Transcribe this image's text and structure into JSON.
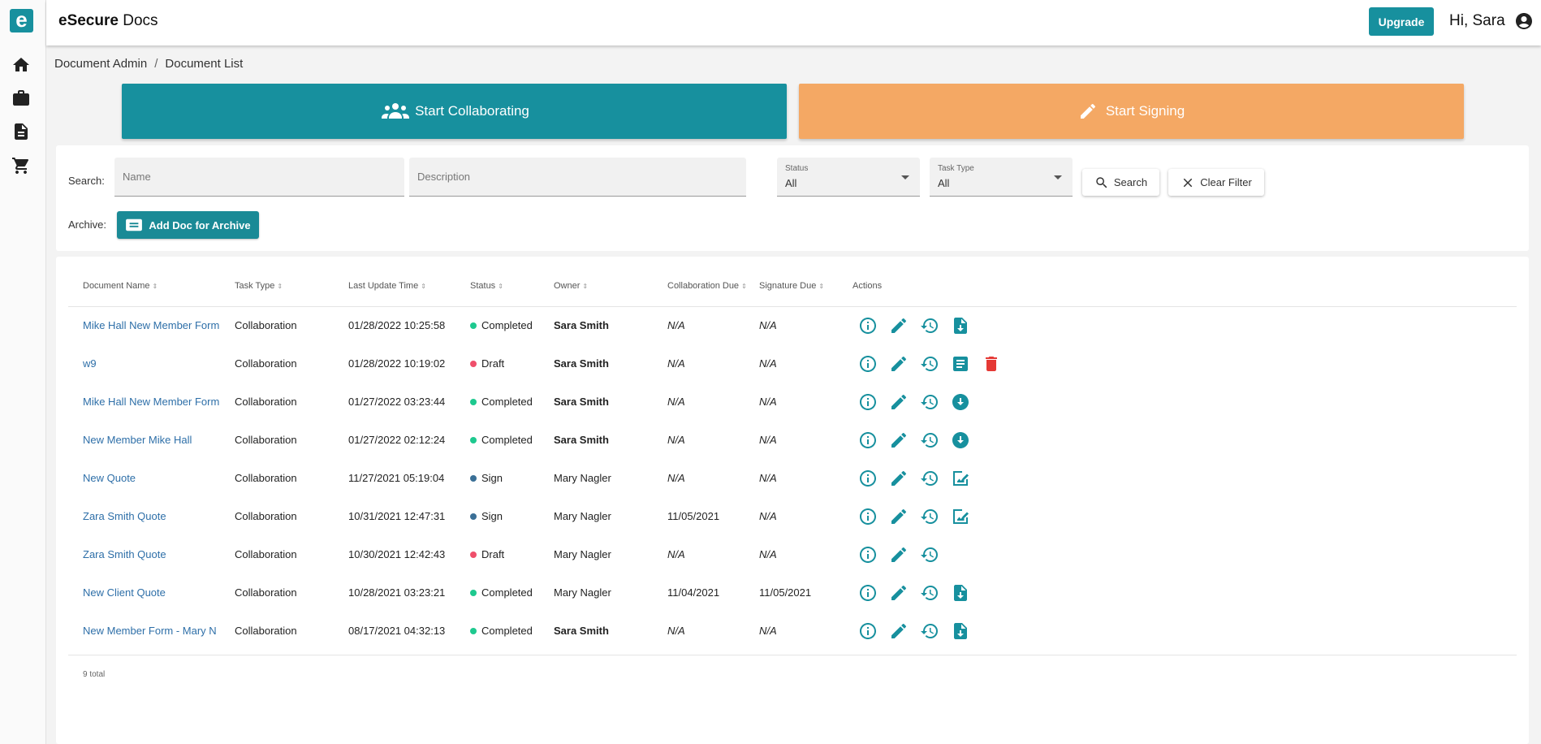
{
  "app": {
    "title_bold": "eSecure",
    "title_rest": "Docs",
    "logo_letter": "e",
    "upgrade_label": "Upgrade",
    "greeting": "Hi, Sara"
  },
  "sidebar": {
    "items": [
      {
        "icon": "home-icon"
      },
      {
        "icon": "briefcase-icon"
      },
      {
        "icon": "document-icon"
      },
      {
        "icon": "cart-icon"
      }
    ]
  },
  "breadcrumb": {
    "items": [
      "Document Admin",
      "Document List"
    ],
    "separator": "/"
  },
  "actions": {
    "collaborate_label": "Start Collaborating",
    "sign_label": "Start Signing",
    "collaborate_color": "#17909e",
    "sign_color": "#f4a864"
  },
  "filters": {
    "search_label": "Search:",
    "name_placeholder": "Name",
    "description_placeholder": "Description",
    "status_label": "Status",
    "status_value": "All",
    "task_type_label": "Task Type",
    "task_type_value": "All",
    "search_button": "Search",
    "clear_button": "Clear Filter",
    "archive_label": "Archive:",
    "archive_button": "Add Doc for Archive"
  },
  "table": {
    "headers": [
      "Document Name",
      "Task Type",
      "Last Update Time",
      "Status",
      "Owner",
      "Collaboration Due",
      "Signature Due",
      "Actions"
    ],
    "status_colors": {
      "Completed": "#1ec98f",
      "Draft": "#ef4f6b",
      "Sign": "#3a6f96"
    },
    "rows": [
      {
        "name": "Mike Hall New Member Form",
        "task": "Collaboration",
        "updated": "01/28/2022 10:25:58",
        "status": "Completed",
        "owner": "Sara Smith",
        "owner_bold": true,
        "collab_due": "N/A",
        "sign_due": "N/A",
        "actions": [
          "info-icon",
          "edit-icon",
          "history-icon",
          "file-download-icon"
        ]
      },
      {
        "name": "w9",
        "task": "Collaboration",
        "updated": "01/28/2022 10:19:02",
        "status": "Draft",
        "owner": "Sara Smith",
        "owner_bold": true,
        "collab_due": "N/A",
        "sign_due": "N/A",
        "actions": [
          "info-icon",
          "edit-icon",
          "history-icon",
          "article-icon",
          "delete-icon"
        ]
      },
      {
        "name": "Mike Hall New Member Form",
        "task": "Collaboration",
        "updated": "01/27/2022 03:23:44",
        "status": "Completed",
        "owner": "Sara Smith",
        "owner_bold": true,
        "collab_due": "N/A",
        "sign_due": "N/A",
        "actions": [
          "info-icon",
          "edit-icon",
          "history-icon",
          "download-circle-icon"
        ]
      },
      {
        "name": "New Member Mike Hall",
        "task": "Collaboration",
        "updated": "01/27/2022 02:12:24",
        "status": "Completed",
        "owner": "Sara Smith",
        "owner_bold": true,
        "collab_due": "N/A",
        "sign_due": "N/A",
        "actions": [
          "info-icon",
          "edit-icon",
          "history-icon",
          "download-circle-icon"
        ]
      },
      {
        "name": "New Quote",
        "task": "Collaboration",
        "updated": "11/27/2021 05:19:04",
        "status": "Sign",
        "owner": "Mary Nagler",
        "owner_bold": false,
        "collab_due": "N/A",
        "sign_due": "N/A",
        "actions": [
          "info-icon",
          "edit-icon",
          "history-icon",
          "sign-document-icon"
        ]
      },
      {
        "name": "Zara Smith Quote",
        "task": "Collaboration",
        "updated": "10/31/2021 12:47:31",
        "status": "Sign",
        "owner": "Mary Nagler",
        "owner_bold": false,
        "collab_due": "11/05/2021",
        "sign_due": "N/A",
        "actions": [
          "info-icon",
          "edit-icon",
          "history-icon",
          "sign-document-icon"
        ]
      },
      {
        "name": "Zara Smith Quote",
        "task": "Collaboration",
        "updated": "10/30/2021 12:42:43",
        "status": "Draft",
        "owner": "Mary Nagler",
        "owner_bold": false,
        "collab_due": "N/A",
        "sign_due": "N/A",
        "actions": [
          "info-icon",
          "edit-icon",
          "history-icon"
        ]
      },
      {
        "name": "New Client Quote",
        "task": "Collaboration",
        "updated": "10/28/2021 03:23:21",
        "status": "Completed",
        "owner": "Mary Nagler",
        "owner_bold": false,
        "collab_due": "11/04/2021",
        "sign_due": "11/05/2021",
        "actions": [
          "info-icon",
          "edit-icon",
          "history-icon",
          "file-download-icon"
        ]
      },
      {
        "name": "New Member Form - Mary N",
        "task": "Collaboration",
        "updated": "08/17/2021 04:32:13",
        "status": "Completed",
        "owner": "Sara Smith",
        "owner_bold": true,
        "collab_due": "N/A",
        "sign_due": "N/A",
        "actions": [
          "info-icon",
          "edit-icon",
          "history-icon",
          "file-download-icon"
        ]
      }
    ],
    "total": "9 total"
  }
}
